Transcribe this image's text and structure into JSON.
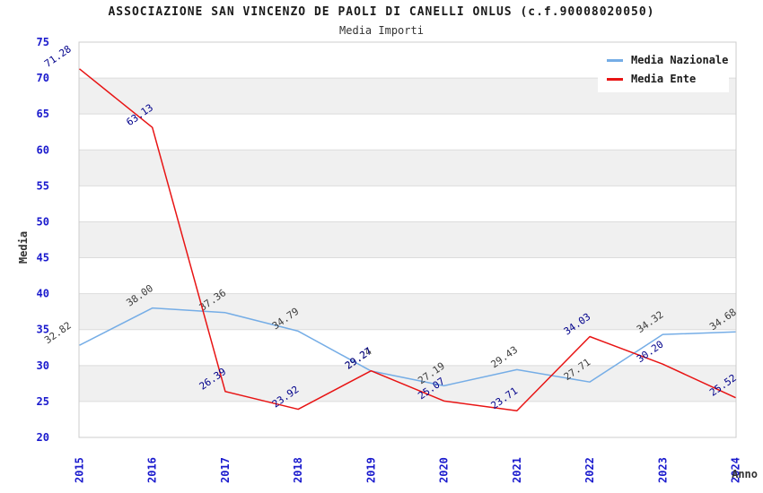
{
  "title": "ASSOCIAZIONE SAN VINCENZO DE PAOLI DI CANELLI ONLUS (c.f.90008020050)",
  "subtitle": "Media Importi",
  "chart_data": {
    "type": "line",
    "x": [
      "2015",
      "2016",
      "2017",
      "2018",
      "2019",
      "2020",
      "2021",
      "2022",
      "2023",
      "2024"
    ],
    "xlabel": "Anno",
    "ylabel": "Media",
    "ylim": [
      20,
      75
    ],
    "ytick_step": 5,
    "grid": true,
    "banded_background": true,
    "legend_position": "top-right",
    "series": [
      {
        "name": "Media Nazionale",
        "color": "#75ade6",
        "label_color": "#3c3c3c",
        "values": [
          32.82,
          38.0,
          37.36,
          34.79,
          29.24,
          27.19,
          29.43,
          27.71,
          34.32,
          34.68
        ]
      },
      {
        "name": "Media Ente",
        "color": "#e81414",
        "label_color": "#00008b",
        "values": [
          71.28,
          63.13,
          26.39,
          23.92,
          29.27,
          25.07,
          23.71,
          34.03,
          30.2,
          25.52
        ]
      }
    ],
    "colors": {
      "tick_label": "#1a1acd",
      "band": "#f0f0f0",
      "grid_line": "#dcdcdc",
      "plot_border": "#cccccc",
      "title_text": "#1a1a1a"
    }
  }
}
